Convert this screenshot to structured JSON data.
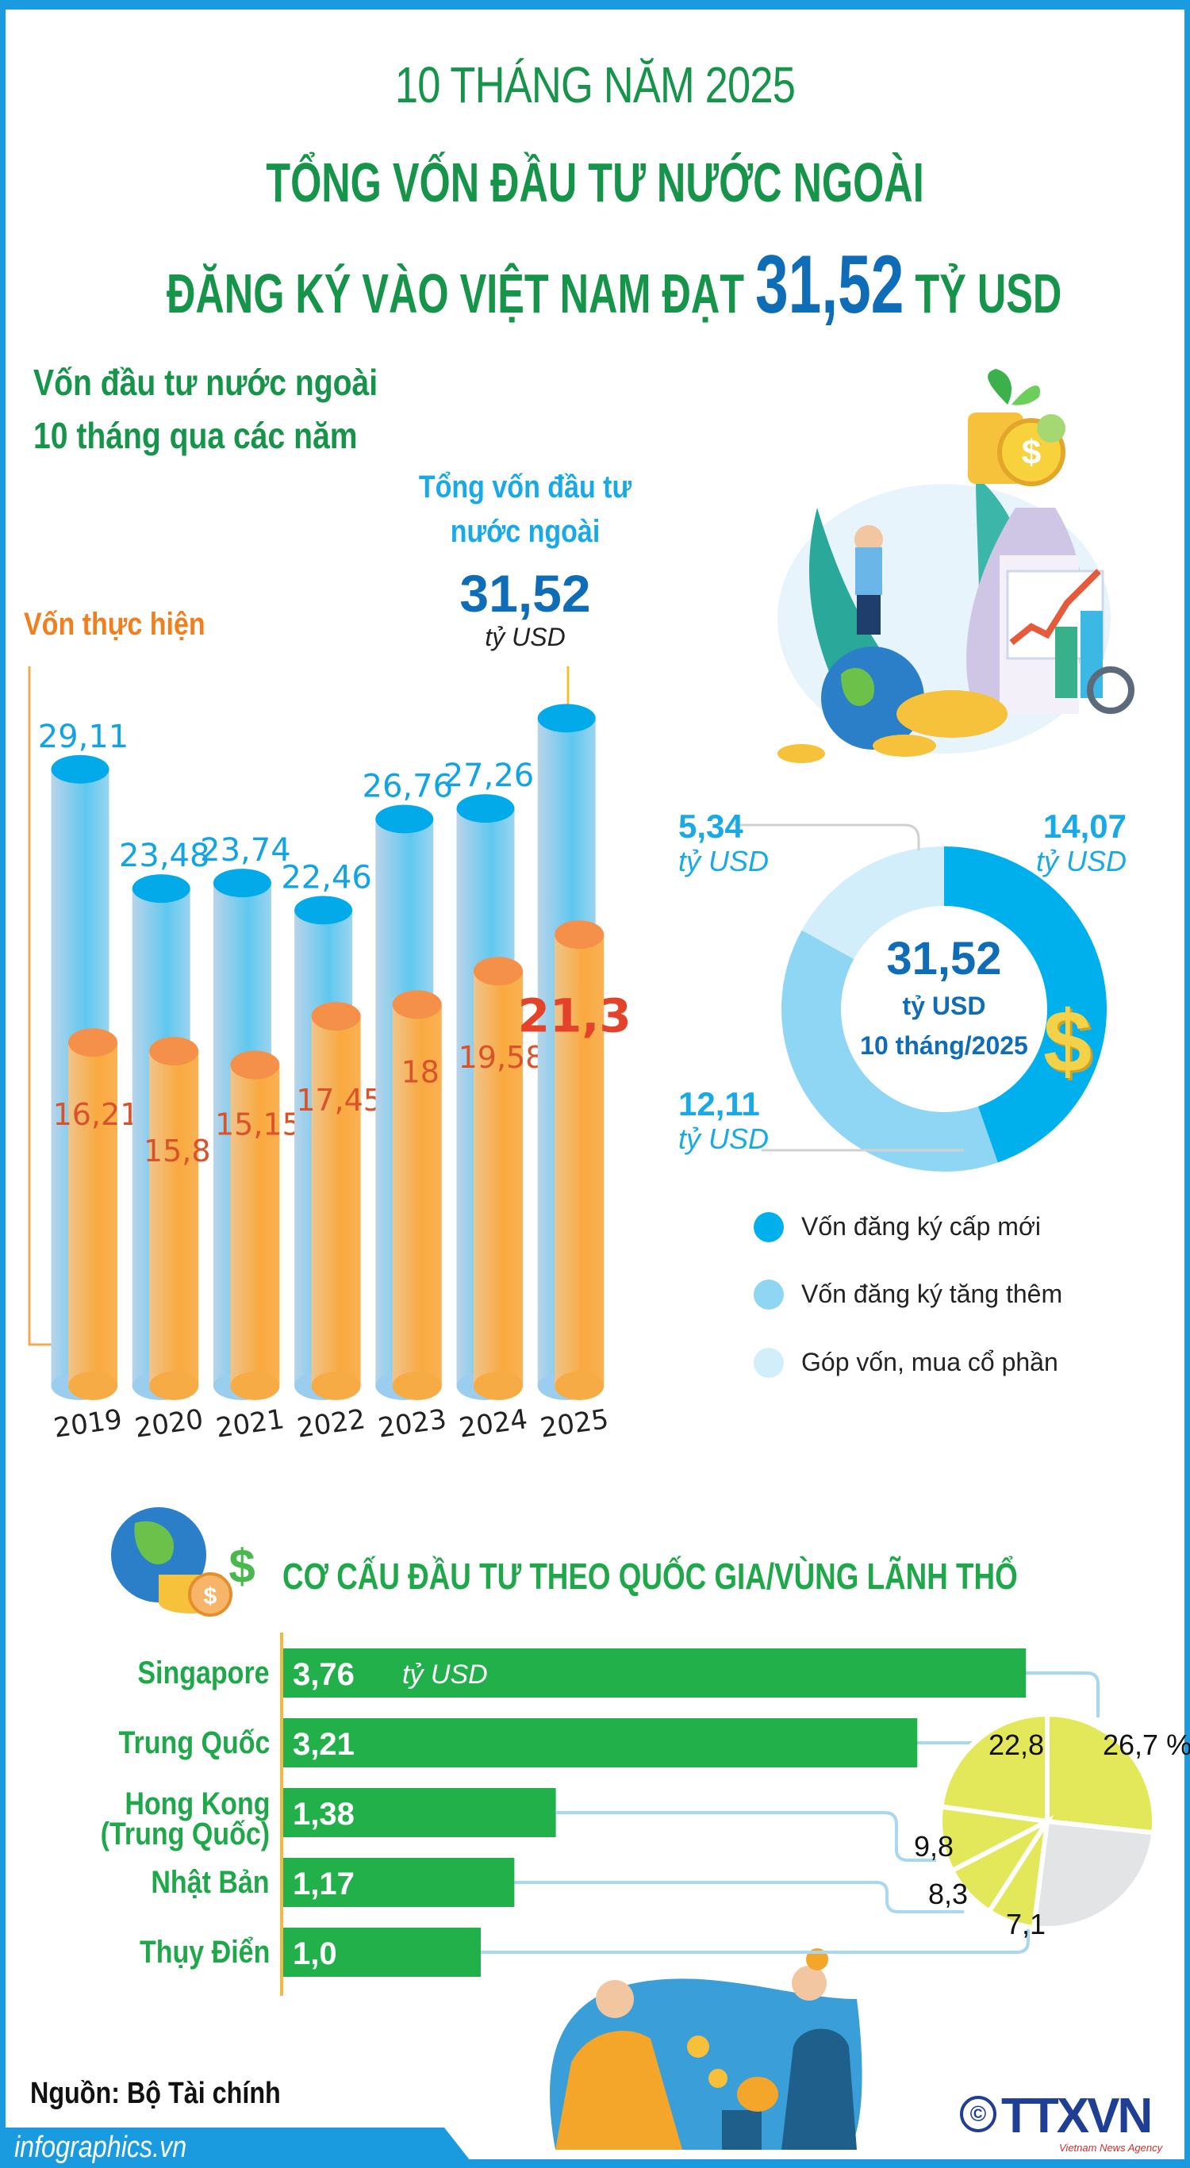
{
  "header": {
    "line1": "10 THÁNG NĂM 2025",
    "line2": "TỔNG VỐN ĐẦU TƯ NƯỚC NGOÀI",
    "line3_prefix": "ĐĂNG KÝ VÀO VIỆT NAM ĐẠT",
    "line3_value": "31,52",
    "line3_suffix": "TỶ USD"
  },
  "section1": {
    "title_line1": "Vốn đầu tư nước ngoài",
    "title_line2": "10 tháng qua các năm",
    "total_label_line1": "Tổng vốn đầu tư",
    "total_label_line2": "nước ngoài",
    "total_value": "31,52",
    "total_unit": "tỷ USD",
    "realized_label": "Vốn thực hiện"
  },
  "colors": {
    "title_green": "#16954a",
    "accent_blue": "#0f6cb6",
    "registered_bar": "#8fd0f0",
    "realized_bar": "#f9a94a",
    "new_registered": "#00b0ec",
    "additional": "#8fd6f5",
    "capital_contribution": "#d2eefb",
    "country_bar": "#22b04b",
    "pie_yellow": "#e2e85a",
    "pie_gray": "#e3e4e6"
  },
  "chart_data": [
    {
      "type": "bar",
      "categories": [
        "2019",
        "2020",
        "2021",
        "2022",
        "2023",
        "2024",
        "2025"
      ],
      "series": [
        {
          "name": "Tổng vốn đầu tư nước ngoài",
          "values": [
            29.11,
            23.48,
            23.74,
            22.46,
            26.76,
            27.26,
            31.52
          ],
          "labels": [
            "29,11",
            "23,48",
            "23,74",
            "22,46",
            "26,76",
            "27,26",
            ""
          ]
        },
        {
          "name": "Vốn thực hiện",
          "values": [
            16.21,
            15.8,
            15.15,
            17.45,
            18,
            19.58,
            21.3
          ],
          "labels": [
            "16,21",
            "15,8",
            "15,15",
            "17,45",
            "18",
            "19,58",
            "21,3"
          ]
        }
      ],
      "unit": "tỷ USD"
    },
    {
      "type": "pie",
      "center_value": "31,52",
      "center_unit": "tỷ USD",
      "center_period": "10 tháng/2025",
      "slices": [
        {
          "name": "Vốn đăng ký cấp mới",
          "value": 14.07,
          "label": "14,07"
        },
        {
          "name": "Vốn đăng ký tăng thêm",
          "value": 12.11,
          "label": "12,11"
        },
        {
          "name": "Góp vốn, mua cổ phần",
          "value": 5.34,
          "label": "5,34"
        }
      ],
      "unit_label": "tỷ USD",
      "legend_placement": "bottom"
    },
    {
      "type": "bar",
      "orientation": "horizontal",
      "title": "CƠ CẤU ĐẦU TƯ THEO QUỐC GIA/VÙNG LÃNH THỔ",
      "categories": [
        "Singapore",
        "Trung Quốc",
        "Hong Kong (Trung Quốc)",
        "Nhật Bản",
        "Thụy Điển"
      ],
      "values": [
        3.76,
        3.21,
        1.38,
        1.17,
        1.0
      ],
      "labels": [
        "3,76",
        "3,21",
        "1,38",
        "1,17",
        "1,0"
      ],
      "unit": "tỷ USD"
    },
    {
      "type": "pie",
      "slices": [
        {
          "category": "Singapore",
          "value": 26.7,
          "label": "26,7 %"
        },
        {
          "category": "other",
          "value": 25.3,
          "label": ""
        },
        {
          "category": "Thụy Điển",
          "value": 7.1,
          "label": "7,1"
        },
        {
          "category": "Nhật Bản",
          "value": 8.3,
          "label": "8,3"
        },
        {
          "category": "Hong Kong (Trung Quốc)",
          "value": 9.8,
          "label": "9,8"
        },
        {
          "category": "Trung Quốc",
          "value": 22.8,
          "label": "22,8"
        }
      ]
    }
  ],
  "section2": {
    "title": "CƠ CẤU ĐẦU TƯ THEO QUỐC GIA/VÙNG LÃNH THỔ",
    "countries": [
      "Singapore",
      "Trung Quốc",
      "Hong Kong",
      "(Trung Quốc)",
      "Nhật Bản",
      "Thụy Điển"
    ],
    "first_bar_unit": "tỷ USD"
  },
  "footer": {
    "source": "Nguồn: Bộ Tài chính",
    "website": "infographics.vn",
    "logo": "TTXVN",
    "logo_sub": "Vietnam News Agency",
    "copyright": "©"
  }
}
